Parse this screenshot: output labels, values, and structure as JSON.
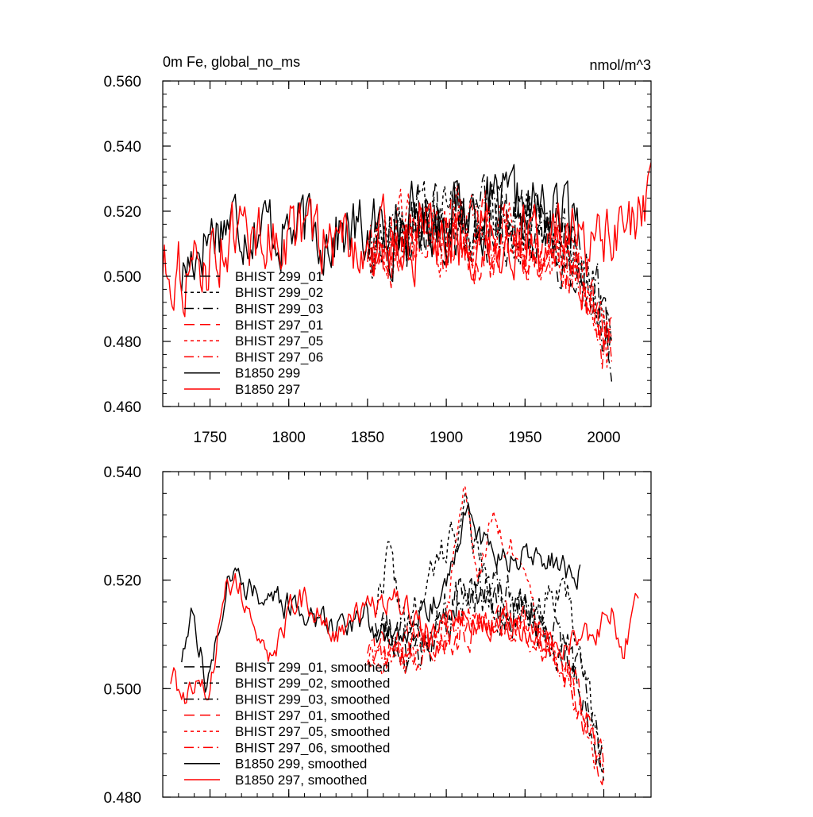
{
  "figure": {
    "title": "0m Fe, global_no_ms",
    "units": "nmol/m^3"
  },
  "chart_data": [
    {
      "type": "line",
      "title": "0m Fe, global_no_ms",
      "units_label": "nmol/m^3",
      "xlabel": "",
      "ylabel": "",
      "xlim": [
        1720,
        2030
      ],
      "ylim": [
        0.46,
        0.56
      ],
      "xticks": [
        1750,
        1800,
        1850,
        1900,
        1950,
        2000
      ],
      "xtick_labels": [
        "1750",
        "1800",
        "1850",
        "1900",
        "1950",
        "2000"
      ],
      "yticks": [
        0.46,
        0.48,
        0.5,
        0.52,
        0.54,
        0.56
      ],
      "ytick_labels": [
        "0.460",
        "0.480",
        "0.500",
        "0.520",
        "0.540",
        "0.560"
      ],
      "legend_position": "lower-left",
      "series": [
        {
          "name": "BHIST 299_01",
          "color": "#000000",
          "dash": "long-dash",
          "start": 1850,
          "end": 2005,
          "seed": 11,
          "base": [
            [
              1850,
              0.512
            ],
            [
              1900,
              0.518
            ],
            [
              1950,
              0.515
            ],
            [
              1975,
              0.512
            ],
            [
              2005,
              0.48
            ]
          ],
          "noise": 0.012
        },
        {
          "name": "BHIST 299_02",
          "color": "#000000",
          "dash": "short-dash",
          "start": 1850,
          "end": 2005,
          "seed": 12,
          "base": [
            [
              1850,
              0.512
            ],
            [
              1900,
              0.52
            ],
            [
              1950,
              0.514
            ],
            [
              1975,
              0.51
            ],
            [
              2005,
              0.482
            ]
          ],
          "noise": 0.012
        },
        {
          "name": "BHIST 299_03",
          "color": "#000000",
          "dash": "dash-dot",
          "start": 1850,
          "end": 2005,
          "seed": 13,
          "base": [
            [
              1850,
              0.511
            ],
            [
              1900,
              0.517
            ],
            [
              1950,
              0.516
            ],
            [
              1975,
              0.511
            ],
            [
              2005,
              0.481
            ]
          ],
          "noise": 0.012
        },
        {
          "name": "BHIST 297_01",
          "color": "#ff0000",
          "dash": "long-dash",
          "start": 1850,
          "end": 2005,
          "seed": 14,
          "base": [
            [
              1850,
              0.51
            ],
            [
              1900,
              0.512
            ],
            [
              1950,
              0.51
            ],
            [
              1975,
              0.506
            ],
            [
              2005,
              0.478
            ]
          ],
          "noise": 0.012
        },
        {
          "name": "BHIST 297_05",
          "color": "#ff0000",
          "dash": "short-dash",
          "start": 1850,
          "end": 2005,
          "seed": 15,
          "base": [
            [
              1850,
              0.509
            ],
            [
              1900,
              0.514
            ],
            [
              1950,
              0.512
            ],
            [
              1975,
              0.506
            ],
            [
              2005,
              0.477
            ]
          ],
          "noise": 0.012
        },
        {
          "name": "BHIST 297_06",
          "color": "#ff0000",
          "dash": "dash-dot",
          "start": 1850,
          "end": 2005,
          "seed": 16,
          "base": [
            [
              1850,
              0.51
            ],
            [
              1900,
              0.513
            ],
            [
              1950,
              0.511
            ],
            [
              1975,
              0.507
            ],
            [
              2005,
              0.479
            ]
          ],
          "noise": 0.012
        },
        {
          "name": "B1850 299",
          "color": "#000000",
          "dash": "solid",
          "start": 1732,
          "end": 1985,
          "seed": 17,
          "base": [
            [
              1732,
              0.5
            ],
            [
              1745,
              0.512
            ],
            [
              1760,
              0.518
            ],
            [
              1800,
              0.514
            ],
            [
              1850,
              0.513
            ],
            [
              1910,
              0.52
            ],
            [
              1960,
              0.52
            ],
            [
              1985,
              0.518
            ]
          ],
          "noise": 0.012
        },
        {
          "name": "B1850 297",
          "color": "#ff0000",
          "dash": "solid",
          "start": 1720,
          "end": 2030,
          "seed": 18,
          "base": [
            [
              1720,
              0.505
            ],
            [
              1740,
              0.5
            ],
            [
              1760,
              0.512
            ],
            [
              1800,
              0.513
            ],
            [
              1850,
              0.51
            ],
            [
              1900,
              0.512
            ],
            [
              1950,
              0.512
            ],
            [
              2000,
              0.508
            ],
            [
              2030,
              0.518
            ]
          ],
          "noise": 0.012
        }
      ]
    },
    {
      "type": "line",
      "title": "",
      "xlabel": "",
      "ylabel": "",
      "xlim": [
        1720,
        2030
      ],
      "ylim": [
        0.48,
        0.54
      ],
      "xticks": [
        1750,
        1800,
        1850,
        1900,
        1950,
        2000
      ],
      "yticks": [
        0.48,
        0.5,
        0.52,
        0.54
      ],
      "ytick_labels": [
        "0.480",
        "0.500",
        "0.520",
        "0.540"
      ],
      "legend_position": "lower-left",
      "series": [
        {
          "name": "BHIST 299_01, smoothed",
          "color": "#000000",
          "dash": "long-dash",
          "start": 1855,
          "end": 2000,
          "seed": 21,
          "base": [
            [
              1855,
              0.514
            ],
            [
              1875,
              0.508
            ],
            [
              1900,
              0.512
            ],
            [
              1915,
              0.52
            ],
            [
              1940,
              0.515
            ],
            [
              1960,
              0.512
            ],
            [
              1980,
              0.505
            ],
            [
              2000,
              0.486
            ]
          ],
          "noise": 0.005
        },
        {
          "name": "BHIST 299_02, smoothed",
          "color": "#000000",
          "dash": "short-dash",
          "start": 1855,
          "end": 2000,
          "seed": 22,
          "base": [
            [
              1855,
              0.515
            ],
            [
              1863,
              0.525
            ],
            [
              1875,
              0.51
            ],
            [
              1893,
              0.522
            ],
            [
              1912,
              0.533
            ],
            [
              1930,
              0.515
            ],
            [
              1950,
              0.513
            ],
            [
              1975,
              0.52
            ],
            [
              2000,
              0.487
            ]
          ],
          "noise": 0.004
        },
        {
          "name": "BHIST 299_03, smoothed",
          "color": "#000000",
          "dash": "dash-dot",
          "start": 1855,
          "end": 2000,
          "seed": 23,
          "base": [
            [
              1855,
              0.512
            ],
            [
              1880,
              0.506
            ],
            [
              1900,
              0.514
            ],
            [
              1915,
              0.52
            ],
            [
              1940,
              0.516
            ],
            [
              1960,
              0.512
            ],
            [
              1980,
              0.507
            ],
            [
              2000,
              0.485
            ]
          ],
          "noise": 0.005
        },
        {
          "name": "BHIST 297_01, smoothed",
          "color": "#ff0000",
          "dash": "long-dash",
          "start": 1850,
          "end": 2000,
          "seed": 24,
          "base": [
            [
              1850,
              0.506
            ],
            [
              1880,
              0.508
            ],
            [
              1900,
              0.51
            ],
            [
              1930,
              0.512
            ],
            [
              1950,
              0.512
            ],
            [
              1975,
              0.505
            ],
            [
              2000,
              0.484
            ]
          ],
          "noise": 0.004
        },
        {
          "name": "BHIST 297_05, smoothed",
          "color": "#ff0000",
          "dash": "short-dash",
          "start": 1850,
          "end": 2000,
          "seed": 25,
          "base": [
            [
              1850,
              0.506
            ],
            [
              1880,
              0.506
            ],
            [
              1900,
              0.512
            ],
            [
              1912,
              0.538
            ],
            [
              1920,
              0.518
            ],
            [
              1928,
              0.532
            ],
            [
              1942,
              0.525
            ],
            [
              1960,
              0.51
            ],
            [
              1975,
              0.503
            ],
            [
              1990,
              0.492
            ],
            [
              2000,
              0.482
            ]
          ],
          "noise": 0.003
        },
        {
          "name": "BHIST 297_06, smoothed",
          "color": "#ff0000",
          "dash": "dash-dot",
          "start": 1850,
          "end": 2000,
          "seed": 26,
          "base": [
            [
              1850,
              0.508
            ],
            [
              1880,
              0.506
            ],
            [
              1900,
              0.51
            ],
            [
              1920,
              0.514
            ],
            [
              1945,
              0.512
            ],
            [
              1965,
              0.507
            ],
            [
              1985,
              0.5
            ],
            [
              2000,
              0.485
            ]
          ],
          "noise": 0.004
        },
        {
          "name": "B1850 299, smoothed",
          "color": "#000000",
          "dash": "solid",
          "start": 1732,
          "end": 1985,
          "seed": 27,
          "base": [
            [
              1732,
              0.506
            ],
            [
              1740,
              0.514
            ],
            [
              1748,
              0.5
            ],
            [
              1762,
              0.522
            ],
            [
              1780,
              0.518
            ],
            [
              1800,
              0.515
            ],
            [
              1830,
              0.512
            ],
            [
              1850,
              0.513
            ],
            [
              1865,
              0.508
            ],
            [
              1885,
              0.515
            ],
            [
              1900,
              0.518
            ],
            [
              1912,
              0.533
            ],
            [
              1930,
              0.524
            ],
            [
              1960,
              0.524
            ],
            [
              1985,
              0.521
            ]
          ],
          "noise": 0.003
        },
        {
          "name": "B1850 297, smoothed",
          "color": "#ff0000",
          "dash": "solid",
          "start": 1725,
          "end": 2022,
          "seed": 28,
          "base": [
            [
              1725,
              0.502
            ],
            [
              1735,
              0.498
            ],
            [
              1750,
              0.5
            ],
            [
              1760,
              0.521
            ],
            [
              1775,
              0.515
            ],
            [
              1790,
              0.505
            ],
            [
              1805,
              0.517
            ],
            [
              1830,
              0.511
            ],
            [
              1850,
              0.514
            ],
            [
              1870,
              0.516
            ],
            [
              1890,
              0.51
            ],
            [
              1910,
              0.514
            ],
            [
              1930,
              0.512
            ],
            [
              1950,
              0.51
            ],
            [
              1975,
              0.509
            ],
            [
              1995,
              0.51
            ],
            [
              2005,
              0.514
            ],
            [
              2012,
              0.506
            ],
            [
              2022,
              0.519
            ]
          ],
          "noise": 0.003
        }
      ]
    }
  ]
}
